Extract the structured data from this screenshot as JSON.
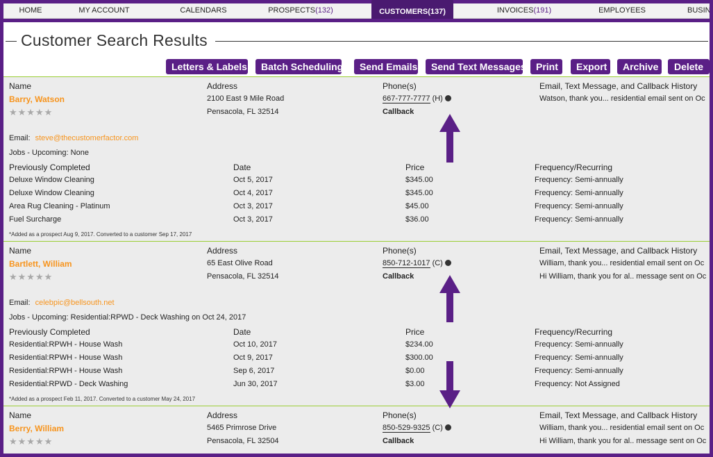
{
  "nav": {
    "tabs": [
      {
        "label": "HOME",
        "count": ""
      },
      {
        "label": "MY ACCOUNT",
        "count": ""
      },
      {
        "label": "CALENDARS",
        "count": ""
      },
      {
        "label": "PROSPECTS",
        "count": "(132)"
      },
      {
        "label": "CUSTOMERS",
        "count": "(137)"
      },
      {
        "label": "INVOICES",
        "count": "(191)"
      },
      {
        "label": "EMPLOYEES",
        "count": ""
      },
      {
        "label": "BUSIN",
        "count": ""
      }
    ],
    "active_tab": "CUSTOMERS"
  },
  "page_title": "Customer Search Results",
  "toolbar": {
    "letters": "Letters & Labels",
    "batch": "Batch Scheduling",
    "emails": "Send Emails",
    "texts": "Send Text Messages",
    "print": "Print",
    "export": "Export",
    "archive": "Archive",
    "delete": "Delete"
  },
  "headers": {
    "name": "Name",
    "address": "Address",
    "phones": "Phone(s)",
    "history": "Email, Text Message, and Callback History",
    "email_label": "Email:",
    "jobs_upcoming": "Jobs - Upcoming",
    "prev": "Previously Completed",
    "date": "Date",
    "price": "Price",
    "freq": "Frequency/Recurring",
    "callback": "Callback"
  },
  "customers": [
    {
      "name": "Barry, Watson",
      "address1": "2100 East 9 Mile Road",
      "address2": "Pensacola, FL 32514",
      "phone": "667-777-7777",
      "phone_type": "(H)",
      "history": [
        "Watson, thank you... residential email sent on Oc"
      ],
      "rating": 0,
      "email": "steve@thecustomerfactor.com",
      "upcoming": "None",
      "jobs": [
        {
          "service": "Deluxe Window Cleaning",
          "date": "Oct 5, 2017",
          "price": "$345.00",
          "freq": "Frequency: Semi-annually"
        },
        {
          "service": "Deluxe Window Cleaning",
          "date": "Oct 4, 2017",
          "price": "$345.00",
          "freq": "Frequency: Semi-annually"
        },
        {
          "service": "Area Rug Cleaning - Platinum",
          "date": "Oct 3, 2017",
          "price": "$45.00",
          "freq": "Frequency: Semi-annually"
        },
        {
          "service": "Fuel Surcharge",
          "date": "Oct 3, 2017",
          "price": "$36.00",
          "freq": "Frequency: Semi-annually"
        }
      ],
      "note": "*Added as a prospect Aug 9, 2017. Converted to a customer Sep 17, 2017"
    },
    {
      "name": "Bartlett, William",
      "address1": "65 East Olive Road",
      "address2": "Pensacola, FL 32514",
      "phone": "850-712-1017",
      "phone_type": "(C)",
      "history": [
        "William, thank you... residential email sent on Oc",
        "Hi William, thank you for al.. message sent on Oc"
      ],
      "rating": 0,
      "email": "celebpic@bellsouth.net",
      "upcoming": "Residential:RPWD - Deck Washing on Oct 24, 2017",
      "jobs": [
        {
          "service": "Residential:RPWH - House Wash",
          "date": "Oct 10, 2017",
          "price": "$234.00",
          "freq": "Frequency: Semi-annually"
        },
        {
          "service": "Residential:RPWH - House Wash",
          "date": "Oct 9, 2017",
          "price": "$300.00",
          "freq": "Frequency: Semi-annually"
        },
        {
          "service": "Residential:RPWH - House Wash",
          "date": "Sep 6, 2017",
          "price": "$0.00",
          "freq": "Frequency: Semi-annually"
        },
        {
          "service": "Residential:RPWD - Deck Washing",
          "date": "Jun 30, 2017",
          "price": "$3.00",
          "freq": "Frequency: Not Assigned"
        }
      ],
      "note": "*Added as a prospect Feb 11, 2017. Converted to a customer May 24, 2017"
    },
    {
      "name": "Berry, William",
      "address1": "5465 Primrose Drive",
      "address2": "Pensacola, FL 32504",
      "phone": "850-529-9325",
      "phone_type": "(C)",
      "history": [
        "William, thank you... residential email sent on Oc",
        "Hi William, thank you for al.. message sent on Oc"
      ],
      "rating": 0
    }
  ],
  "colors": {
    "brand": "#5a1f86",
    "accent": "#f7941d",
    "row_bg": "#ececec",
    "divider": "#9acd32"
  }
}
